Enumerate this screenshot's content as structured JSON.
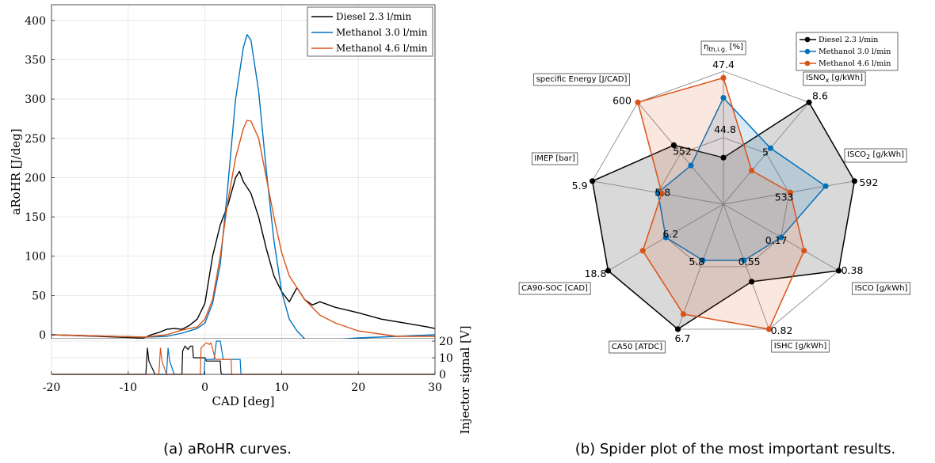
{
  "captions": {
    "left": "(a) aRoHR curves.",
    "right": "(b) Spider plot of the most important results."
  },
  "colors": {
    "diesel": "#000000",
    "methanol_30": "#0072BD",
    "methanol_46": "#D95319"
  },
  "chart_data": [
    {
      "type": "line",
      "title": "",
      "xlabel": "CAD [deg]",
      "ylabel": "aRoHR [J/deg]",
      "y2label": "Injector signal [V]",
      "xlim": [
        -20,
        30
      ],
      "ylim": [
        -5,
        420
      ],
      "y2lim": [
        0,
        20
      ],
      "x_ticks": [
        "-20",
        "-10",
        "0",
        "10",
        "20",
        "30"
      ],
      "y_ticks": [
        "0",
        "50",
        "100",
        "150",
        "200",
        "250",
        "300",
        "350",
        "400"
      ],
      "y2_ticks": [
        "0",
        "10",
        "20"
      ],
      "grid": true,
      "legend_position": "top-right",
      "series": [
        {
          "name": "Diesel 2.3 l/min",
          "color_key": "diesel",
          "x": [
            -20,
            -8,
            -7,
            -6,
            -5,
            -4,
            -3,
            -2,
            -1,
            0,
            1,
            2,
            3,
            4,
            4.5,
            5,
            6,
            7,
            8,
            9,
            10,
            11,
            12,
            13,
            14,
            15,
            17,
            20,
            23,
            26,
            29,
            30
          ],
          "y": [
            0,
            -4,
            0,
            3,
            7,
            8,
            7,
            12,
            20,
            40,
            100,
            140,
            165,
            200,
            208,
            195,
            180,
            150,
            110,
            75,
            55,
            42,
            60,
            45,
            38,
            42,
            35,
            28,
            20,
            15,
            10,
            8
          ]
        },
        {
          "name": "Methanol 3.0 l/min",
          "color_key": "methanol_30",
          "x": [
            -20,
            -8,
            -5,
            -4,
            -3,
            -2,
            -1,
            0,
            1,
            2,
            3,
            4,
            5,
            5.5,
            6,
            7,
            8,
            9,
            10,
            11,
            12,
            13,
            14,
            15,
            17,
            20,
            25,
            30
          ],
          "y": [
            0,
            -3,
            -2,
            0,
            2,
            5,
            8,
            15,
            40,
            90,
            190,
            300,
            365,
            382,
            375,
            310,
            210,
            120,
            55,
            20,
            5,
            -5,
            -8,
            -8,
            -6,
            -4,
            -2,
            0
          ]
        },
        {
          "name": "Methanol 4.6 l/min",
          "color_key": "methanol_46",
          "x": [
            -20,
            -8,
            -5,
            -4,
            -3,
            -2,
            -1,
            0,
            1,
            2,
            3,
            4,
            5,
            5.5,
            6,
            7,
            8,
            9,
            10,
            11,
            12,
            13,
            14,
            15,
            17,
            20,
            25,
            30
          ],
          "y": [
            0,
            -3,
            0,
            3,
            6,
            8,
            10,
            20,
            45,
            100,
            170,
            225,
            262,
            273,
            272,
            250,
            200,
            150,
            105,
            75,
            60,
            45,
            35,
            25,
            15,
            5,
            -2,
            -2
          ]
        }
      ],
      "injector_series": [
        {
          "name": "Diesel 2.3 l/min",
          "color_key": "diesel",
          "x": [
            -20,
            -8.3,
            -7.7,
            -7.5,
            -7.3,
            -6.5,
            -3,
            -2.9,
            -2.6,
            -2.2,
            -1.9,
            -1.8,
            -1.6,
            -1.5,
            0,
            0.1,
            0.2,
            2,
            2.1,
            2.2,
            30
          ],
          "y": [
            0,
            0,
            0,
            16,
            8,
            0,
            0,
            14,
            17,
            15,
            17,
            17,
            17,
            10,
            10,
            9,
            8,
            8,
            1,
            0,
            0
          ]
        },
        {
          "name": "Methanol 3.0 l/min",
          "color_key": "methanol_30",
          "x": [
            -20,
            -5.5,
            -5,
            -4.8,
            -4.6,
            -4,
            -0.1,
            0,
            1.2,
            1.5,
            2,
            2.4,
            2.5,
            4.6,
            4.7,
            19.5,
            19.6,
            30
          ],
          "y": [
            0,
            0,
            0,
            16,
            8,
            0,
            0,
            9,
            9,
            20,
            20,
            9,
            9,
            9,
            0,
            0,
            0,
            0
          ]
        },
        {
          "name": "Methanol 4.6 l/min",
          "color_key": "methanol_46",
          "x": [
            -20,
            -6.3,
            -6,
            -5.8,
            -5.6,
            -5,
            -0.6,
            -0.5,
            0.2,
            0.6,
            0.8,
            1.3,
            1.4,
            3.4,
            3.5,
            30
          ],
          "y": [
            0,
            0,
            0,
            16,
            8,
            0,
            0,
            16,
            19,
            18,
            19,
            10,
            9,
            9,
            0,
            0
          ]
        }
      ]
    },
    {
      "type": "radar",
      "title": "",
      "legend_position": "top-right",
      "axes": [
        {
          "label_main": "η",
          "label_sub": "th,i.g.",
          "label_tail": " [%]",
          "inner_tick": "44.8",
          "outer_tick": "47.4"
        },
        {
          "label_main": "ISNO",
          "label_sub": "x",
          "label_tail": " [g/kWh]",
          "inner_tick": "5",
          "outer_tick": "8.6"
        },
        {
          "label_main": "ISCO",
          "label_sub": "2",
          "label_tail": " [g/kWh]",
          "inner_tick": "533",
          "outer_tick": "592"
        },
        {
          "label_main": "ISCO [g/kWh]",
          "label_sub": "",
          "label_tail": "",
          "inner_tick": "0.17",
          "outer_tick": "0.38"
        },
        {
          "label_main": "ISHC [g/kWh]",
          "label_sub": "",
          "label_tail": "",
          "inner_tick": "0.55",
          "outer_tick": "0.82"
        },
        {
          "label_main": "CA50 [ATDC]",
          "label_sub": "",
          "label_tail": "",
          "inner_tick": "5.8",
          "outer_tick": "6.7"
        },
        {
          "label_main": "CA90-SOC [CAD]",
          "label_sub": "",
          "label_tail": "",
          "inner_tick": "6.2",
          "outer_tick": "18.8"
        },
        {
          "label_main": "IMEP [bar]",
          "label_sub": "",
          "label_tail": "",
          "inner_tick": "5.8",
          "outer_tick": "5.9"
        },
        {
          "label_main": "specific Energy [J/CAD]",
          "label_sub": "",
          "label_tail": "",
          "inner_tick": "552",
          "outer_tick": "600"
        }
      ],
      "series": [
        {
          "name": "Diesel 2.3 l/min",
          "color_key": "diesel",
          "values": [
            0.35,
            1.0,
            1.0,
            1.0,
            0.62,
            1.0,
            1.0,
            1.0,
            0.58
          ]
        },
        {
          "name": "Methanol 3.0 l/min",
          "color_key": "methanol_30",
          "values": [
            0.8,
            0.55,
            0.78,
            0.5,
            0.45,
            0.45,
            0.5,
            0.5,
            0.38
          ]
        },
        {
          "name": "Methanol 4.6 l/min",
          "color_key": "methanol_46",
          "values": [
            0.95,
            0.33,
            0.51,
            0.7,
            1.0,
            0.88,
            0.7,
            0.47,
            1.0
          ]
        }
      ]
    }
  ]
}
